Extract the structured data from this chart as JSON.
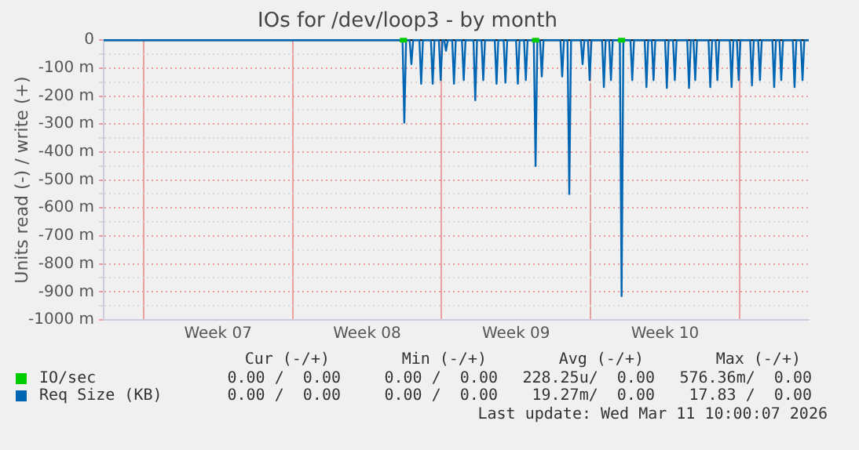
{
  "chart_data": {
    "type": "line",
    "title": "IOs for /dev/loop3 - by month",
    "ylabel": "Units read (-) / write (+)",
    "xlim": [
      "2026-02-07T03:00",
      "2026-03-12T06:00"
    ],
    "xticks": [
      {
        "value": "2026-02-09T00:00",
        "label": null
      },
      {
        "value": "2026-02-12T12:00",
        "label": "Week 07"
      },
      {
        "value": "2026-02-16T00:00",
        "label": null
      },
      {
        "value": "2026-02-19T12:00",
        "label": "Week 08"
      },
      {
        "value": "2026-02-23T00:00",
        "label": null
      },
      {
        "value": "2026-02-26T12:00",
        "label": "Week 09"
      },
      {
        "value": "2026-03-02T00:00",
        "label": null
      },
      {
        "value": "2026-03-05T12:00",
        "label": "Week 10"
      },
      {
        "value": "2026-03-09T00:00",
        "label": null
      }
    ],
    "ylim": [
      -1000,
      0
    ],
    "yticks": [
      {
        "value": -1000,
        "label": "-1000 m"
      },
      {
        "value": -950,
        "label": null
      },
      {
        "value": -900,
        "label": "-900 m"
      },
      {
        "value": -850,
        "label": null
      },
      {
        "value": -800,
        "label": "-800 m"
      },
      {
        "value": -750,
        "label": null
      },
      {
        "value": -700,
        "label": "-700 m"
      },
      {
        "value": -650,
        "label": null
      },
      {
        "value": -600,
        "label": "-600 m"
      },
      {
        "value": -550,
        "label": null
      },
      {
        "value": -500,
        "label": "-500 m"
      },
      {
        "value": -450,
        "label": null
      },
      {
        "value": -400,
        "label": "-400 m"
      },
      {
        "value": -350,
        "label": null
      },
      {
        "value": -300,
        "label": "-300 m"
      },
      {
        "value": -250,
        "label": null
      },
      {
        "value": -200,
        "label": "-200 m"
      },
      {
        "value": -150,
        "label": null
      },
      {
        "value": -100,
        "label": "-100 m"
      },
      {
        "value": -50,
        "label": null
      },
      {
        "value": 0,
        "label": "0"
      }
    ],
    "grid": true,
    "legend": "bottom",
    "marker": "none",
    "line_style": "solid",
    "ref_lines": [
      {
        "axis": "y",
        "value": 0,
        "color": "#000000"
      }
    ],
    "series": [
      {
        "name": "IO/sec",
        "color": "#00cc00",
        "x": [
          "2026-02-21T01:00",
          "2026-02-21T09:00",
          "2026-02-21T10:00",
          "2026-02-27T06:00",
          "2026-02-27T14:00",
          "2026-02-27T15:00",
          "2026-03-03T07:00",
          "2026-03-03T15:00"
        ],
        "values": [
          0,
          0,
          null,
          0,
          0,
          null,
          0,
          0
        ]
      },
      {
        "name": "Req Size (KB)",
        "color": "#0066b3",
        "x": [
          "2026-02-07T03:00",
          "2026-02-21T04:00",
          "2026-02-21T06:00",
          "2026-02-21T08:00",
          "2026-02-21T12:00",
          "2026-02-21T14:00",
          "2026-02-21T16:00",
          "2026-02-21T23:00",
          "2026-02-22T01:00",
          "2026-02-22T03:00",
          "2026-02-22T12:00",
          "2026-02-22T14:00",
          "2026-02-22T16:00",
          "2026-02-22T21:00",
          "2026-02-22T23:00",
          "2026-02-23T01:00",
          "2026-02-23T03:00",
          "2026-02-23T05:00",
          "2026-02-23T07:00",
          "2026-02-23T12:00",
          "2026-02-23T14:00",
          "2026-02-23T16:00",
          "2026-02-23T23:00",
          "2026-02-24T01:00",
          "2026-02-24T03:00",
          "2026-02-24T12:00",
          "2026-02-24T14:00",
          "2026-02-24T16:00",
          "2026-02-24T21:00",
          "2026-02-24T23:00",
          "2026-02-25T01:00",
          "2026-02-25T12:00",
          "2026-02-25T14:00",
          "2026-02-25T16:00",
          "2026-02-25T22:00",
          "2026-02-26T00:00",
          "2026-02-26T02:00",
          "2026-02-26T12:00",
          "2026-02-26T14:00",
          "2026-02-26T16:00",
          "2026-02-26T21:00",
          "2026-02-26T23:00",
          "2026-02-27T01:00",
          "2026-02-27T08:00",
          "2026-02-27T10:00",
          "2026-02-27T12:00",
          "2026-02-27T15:00",
          "2026-02-27T17:00",
          "2026-02-27T19:00",
          "2026-02-28T14:00",
          "2026-02-28T16:00",
          "2026-02-28T18:00",
          "2026-02-28T22:00",
          "2026-03-01T00:00",
          "2026-03-01T02:00",
          "2026-03-01T13:00",
          "2026-03-01T15:00",
          "2026-03-01T17:00",
          "2026-03-01T21:00",
          "2026-03-01T23:00",
          "2026-03-02T01:00",
          "2026-03-02T13:00",
          "2026-03-02T15:00",
          "2026-03-02T17:00",
          "2026-03-02T21:00",
          "2026-03-02T23:00",
          "2026-03-03T01:00",
          "2026-03-03T09:00",
          "2026-03-03T11:00",
          "2026-03-03T13:00",
          "2026-03-03T21:00",
          "2026-03-03T23:00",
          "2026-03-04T01:00",
          "2026-03-04T13:00",
          "2026-03-04T15:00",
          "2026-03-04T17:00",
          "2026-03-04T21:00",
          "2026-03-04T23:00",
          "2026-03-05T01:00",
          "2026-03-05T12:00",
          "2026-03-05T14:00",
          "2026-03-05T16:00",
          "2026-03-05T21:00",
          "2026-03-05T23:00",
          "2026-03-06T01:00",
          "2026-03-06T13:00",
          "2026-03-06T15:00",
          "2026-03-06T17:00",
          "2026-03-06T20:00",
          "2026-03-06T22:00",
          "2026-03-07T00:00",
          "2026-03-07T13:00",
          "2026-03-07T15:00",
          "2026-03-07T17:00",
          "2026-03-07T21:00",
          "2026-03-07T23:00",
          "2026-03-08T01:00",
          "2026-03-08T13:00",
          "2026-03-08T15:00",
          "2026-03-08T17:00",
          "2026-03-08T21:00",
          "2026-03-08T23:00",
          "2026-03-09T01:00",
          "2026-03-09T12:00",
          "2026-03-09T14:00",
          "2026-03-09T16:00",
          "2026-03-09T21:00",
          "2026-03-09T23:00",
          "2026-03-10T01:00",
          "2026-03-10T13:00",
          "2026-03-10T15:00",
          "2026-03-10T17:00",
          "2026-03-10T21:00",
          "2026-03-10T23:00",
          "2026-03-11T01:00",
          "2026-03-11T12:00",
          "2026-03-11T14:00",
          "2026-03-11T16:00",
          "2026-03-11T21:00",
          "2026-03-11T23:00",
          "2026-03-12T01:00",
          "2026-03-12T06:00"
        ],
        "values": [
          0,
          0,
          -295,
          0,
          0,
          -86,
          0,
          0,
          -156,
          0,
          0,
          -156,
          0,
          0,
          -143,
          0,
          0,
          -38,
          0,
          0,
          -156,
          0,
          0,
          -143,
          0,
          0,
          -215,
          0,
          0,
          -143,
          0,
          0,
          -156,
          0,
          0,
          -152,
          0,
          0,
          -156,
          0,
          0,
          -143,
          0,
          0,
          -450,
          0,
          0,
          -130,
          0,
          0,
          -130,
          0,
          0,
          -550,
          0,
          0,
          -86,
          0,
          0,
          -143,
          0,
          0,
          -168,
          0,
          0,
          -143,
          0,
          0,
          -915,
          0,
          0,
          -143,
          0,
          0,
          -168,
          0,
          0,
          -143,
          0,
          0,
          -171,
          0,
          0,
          -143,
          0,
          0,
          -171,
          0,
          0,
          -143,
          0,
          0,
          -168,
          0,
          0,
          -143,
          0,
          0,
          -168,
          0,
          0,
          -143,
          0,
          0,
          -162,
          0,
          0,
          -143,
          0,
          0,
          -168,
          0,
          0,
          -143,
          0,
          0,
          -168,
          0,
          0,
          -143,
          0,
          0
        ]
      }
    ],
    "annotations": [
      "Cur (-/+)",
      "Min (-/+)",
      "Avg (-/+)",
      "Max (-/+)",
      "0.00 /  0.00",
      "0.00 /  0.00",
      "228.25u/  0.00",
      "576.36m/  0.00",
      "0.00 /  0.00",
      "0.00 /  0.00",
      "19.27m/  0.00",
      "17.83 /  0.00",
      "Last update: Wed Mar 11 10:00:07 2026"
    ]
  }
}
